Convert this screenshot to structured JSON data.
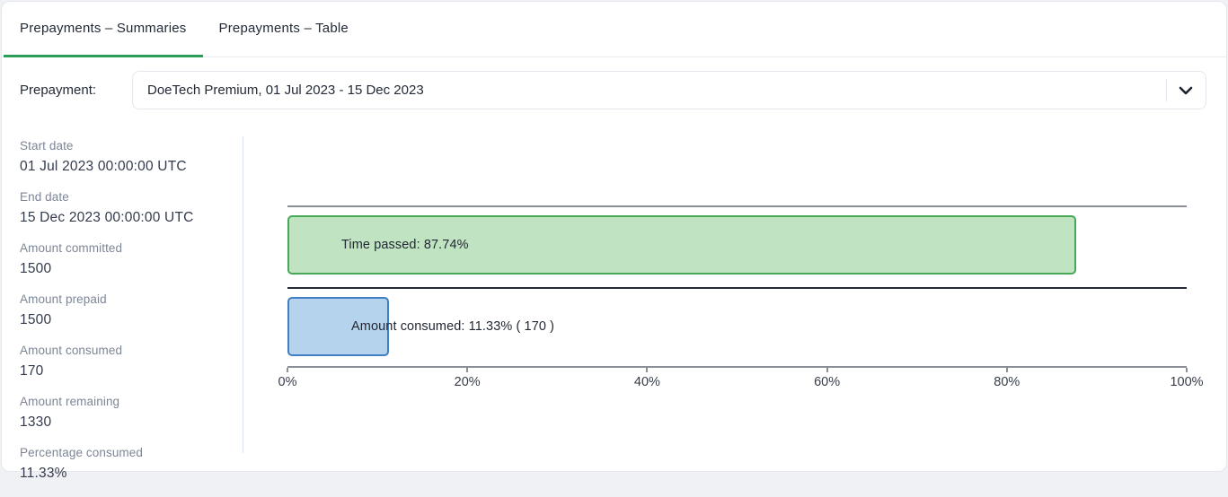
{
  "tabs": [
    {
      "label": "Prepayments – Summaries",
      "active": true
    },
    {
      "label": "Prepayments – Table",
      "active": false
    }
  ],
  "prepayment_selector": {
    "label": "Prepayment:",
    "selected_option": "DoeTech Premium, 01 Jul 2023 - 15 Dec 2023",
    "chevron_icon": "chevron-down"
  },
  "stats": [
    {
      "label": "Start date",
      "value": "01 Jul 2023 00:00:00 UTC"
    },
    {
      "label": "End date",
      "value": "15 Dec 2023 00:00:00 UTC"
    },
    {
      "label": "Amount committed",
      "value": "1500"
    },
    {
      "label": "Amount prepaid",
      "value": "1500"
    },
    {
      "label": "Amount consumed",
      "value": "170"
    },
    {
      "label": "Amount remaining",
      "value": "1330"
    },
    {
      "label": "Percentage consumed",
      "value": "11.33%"
    }
  ],
  "chart_data": {
    "type": "bar",
    "orientation": "horizontal",
    "bars": [
      {
        "name": "Time passed",
        "value_pct": 87.74,
        "label": "Time passed: 87.74%",
        "fill": "#c0e3c2",
        "border": "#47a957"
      },
      {
        "name": "Amount consumed",
        "value_pct": 11.33,
        "amount": 170,
        "label": "Amount consumed: 11.33% ( 170 )",
        "fill": "#b6d3ed",
        "border": "#3e80c2"
      }
    ],
    "x_ticks": [
      "0%",
      "20%",
      "40%",
      "60%",
      "80%",
      "100%"
    ],
    "xlim": [
      0,
      100
    ],
    "grid": false,
    "legend": false
  },
  "colors": {
    "accent_green": "#2a9d56",
    "axis_line": "#8a8f97",
    "separator_line": "#242933",
    "stat_label": "#7d8696",
    "stat_value": "#333b4c"
  }
}
